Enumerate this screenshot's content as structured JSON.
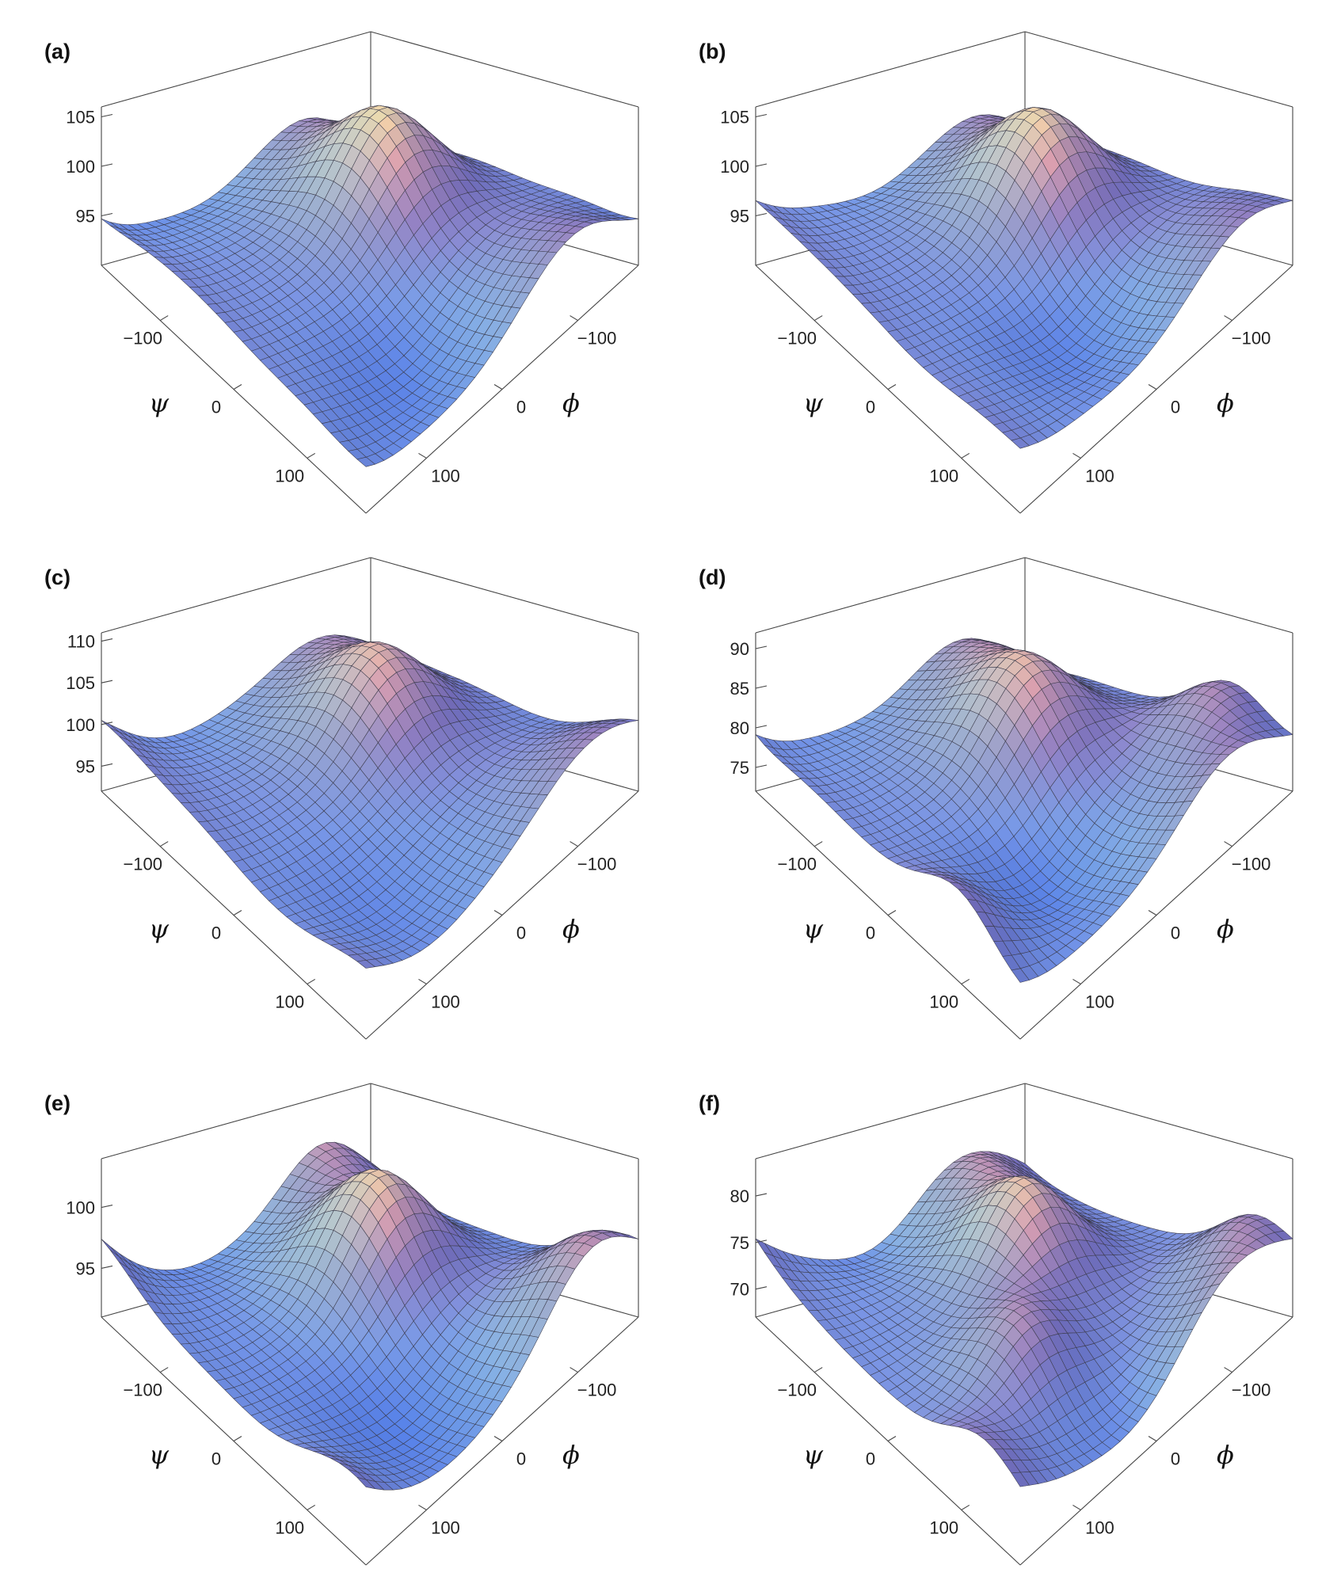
{
  "figure": {
    "title": ""
  },
  "colors": {
    "low": "#5a8cf0",
    "mid": "#8e89c8",
    "high": "#e6aaa6",
    "peak": "#eaf2b0",
    "accent_cyan": "#9fe8df",
    "box": "#444444"
  },
  "chart_data": [
    {
      "panel": "(a)",
      "type": "surface3d",
      "title": "(a)",
      "xlabel": "ψ",
      "ylabel": "ϕ",
      "zlabel": "",
      "x_ticks": [
        "-100",
        "0",
        "100"
      ],
      "y_ticks": [
        "-100",
        "0",
        "100"
      ],
      "z_ticks": [
        "95",
        "100",
        "105"
      ],
      "xlim": [
        -180,
        180
      ],
      "ylim": [
        -180,
        180
      ],
      "zlim": [
        90,
        106
      ],
      "surface": {
        "base": 95,
        "bumps": [
          {
            "psi": -40,
            "phi": -60,
            "height": 10,
            "width": 55
          },
          {
            "psi": -150,
            "phi": -90,
            "height": 3,
            "width": 60
          },
          {
            "psi": 140,
            "phi": -120,
            "height": 2,
            "width": 60
          },
          {
            "psi": 120,
            "phi": 60,
            "height": -3,
            "width": 60
          },
          {
            "psi": 170,
            "phi": 170,
            "height": -2,
            "width": 50
          }
        ]
      }
    },
    {
      "panel": "(b)",
      "type": "surface3d",
      "title": "(b)",
      "xlabel": "ψ",
      "ylabel": "ϕ",
      "zlabel": "",
      "x_ticks": [
        "-100",
        "0",
        "100"
      ],
      "y_ticks": [
        "-100",
        "0",
        "100"
      ],
      "z_ticks": [
        "95",
        "100",
        "105"
      ],
      "xlim": [
        -180,
        180
      ],
      "ylim": [
        -180,
        180
      ],
      "zlim": [
        90,
        106
      ],
      "surface": {
        "base": 95,
        "bumps": [
          {
            "psi": -40,
            "phi": -60,
            "height": 10,
            "width": 55
          },
          {
            "psi": -150,
            "phi": -110,
            "height": 3,
            "width": 60
          },
          {
            "psi": 140,
            "phi": -140,
            "height": 2,
            "width": 55
          },
          {
            "psi": 100,
            "phi": 30,
            "height": -3,
            "width": 60
          },
          {
            "psi": 170,
            "phi": 170,
            "height": -1,
            "width": 50
          }
        ]
      }
    },
    {
      "panel": "(c)",
      "type": "surface3d",
      "title": "(c)",
      "xlabel": "ψ",
      "ylabel": "ϕ",
      "zlabel": "",
      "x_ticks": [
        "-100",
        "0",
        "100"
      ],
      "y_ticks": [
        "-100",
        "0",
        "100"
      ],
      "z_ticks": [
        "95",
        "100",
        "105",
        "110"
      ],
      "xlim": [
        -180,
        180
      ],
      "ylim": [
        -180,
        180
      ],
      "zlim": [
        92,
        111
      ],
      "surface": {
        "base": 98,
        "bumps": [
          {
            "psi": -50,
            "phi": -60,
            "height": 10,
            "width": 55
          },
          {
            "psi": -160,
            "phi": -110,
            "height": 4,
            "width": 60
          },
          {
            "psi": 150,
            "phi": -160,
            "height": 2,
            "width": 55
          },
          {
            "psi": 120,
            "phi": 100,
            "height": -3,
            "width": 70
          }
        ]
      }
    },
    {
      "panel": "(d)",
      "type": "surface3d",
      "title": "(d)",
      "xlabel": "ψ",
      "ylabel": "ϕ",
      "zlabel": "",
      "x_ticks": [
        "-100",
        "0",
        "100"
      ],
      "y_ticks": [
        "-100",
        "0",
        "100"
      ],
      "z_ticks": [
        "75",
        "80",
        "85",
        "90"
      ],
      "xlim": [
        -180,
        180
      ],
      "ylim": [
        -180,
        180
      ],
      "zlim": [
        72,
        92
      ],
      "surface": {
        "base": 78,
        "bumps": [
          {
            "psi": -40,
            "phi": -40,
            "height": 11,
            "width": 55
          },
          {
            "psi": -150,
            "phi": -90,
            "height": 6,
            "width": 55
          },
          {
            "psi": 100,
            "phi": -160,
            "height": 7,
            "width": 50
          },
          {
            "psi": 90,
            "phi": 60,
            "height": -4,
            "width": 55
          },
          {
            "psi": 170,
            "phi": 170,
            "height": -2,
            "width": 50
          }
        ]
      }
    },
    {
      "panel": "(e)",
      "type": "surface3d",
      "title": "(e)",
      "xlabel": "ψ",
      "ylabel": "ϕ",
      "zlabel": "",
      "x_ticks": [
        "-100",
        "0",
        "100"
      ],
      "y_ticks": [
        "-100",
        "0",
        "100"
      ],
      "z_ticks": [
        "95",
        "100"
      ],
      "xlim": [
        -180,
        180
      ],
      "ylim": [
        -180,
        180
      ],
      "zlim": [
        91,
        104
      ],
      "surface": {
        "base": 94,
        "bumps": [
          {
            "psi": -40,
            "phi": -50,
            "height": 9,
            "width": 55
          },
          {
            "psi": -170,
            "phi": -110,
            "height": 4,
            "width": 55
          },
          {
            "psi": 140,
            "phi": -140,
            "height": 3,
            "width": 55
          },
          {
            "psi": 110,
            "phi": 60,
            "height": -2,
            "width": 60
          }
        ]
      }
    },
    {
      "panel": "(f)",
      "type": "surface3d",
      "title": "(f)",
      "xlabel": "ψ",
      "ylabel": "ϕ",
      "zlabel": "",
      "x_ticks": [
        "-100",
        "0",
        "100"
      ],
      "y_ticks": [
        "-100",
        "0",
        "100"
      ],
      "z_ticks": [
        "70",
        "75",
        "80"
      ],
      "xlim": [
        -180,
        180
      ],
      "ylim": [
        -180,
        180
      ],
      "zlim": [
        67,
        84
      ],
      "surface": {
        "base": 72,
        "bumps": [
          {
            "psi": -40,
            "phi": -40,
            "height": 10,
            "width": 50
          },
          {
            "psi": -150,
            "phi": -90,
            "height": 6,
            "width": 50
          },
          {
            "psi": 130,
            "phi": -160,
            "height": 5,
            "width": 45
          },
          {
            "psi": 60,
            "phi": 60,
            "height": 6,
            "width": 45
          },
          {
            "psi": 160,
            "phi": 40,
            "height": -2,
            "width": 50
          }
        ]
      }
    }
  ]
}
